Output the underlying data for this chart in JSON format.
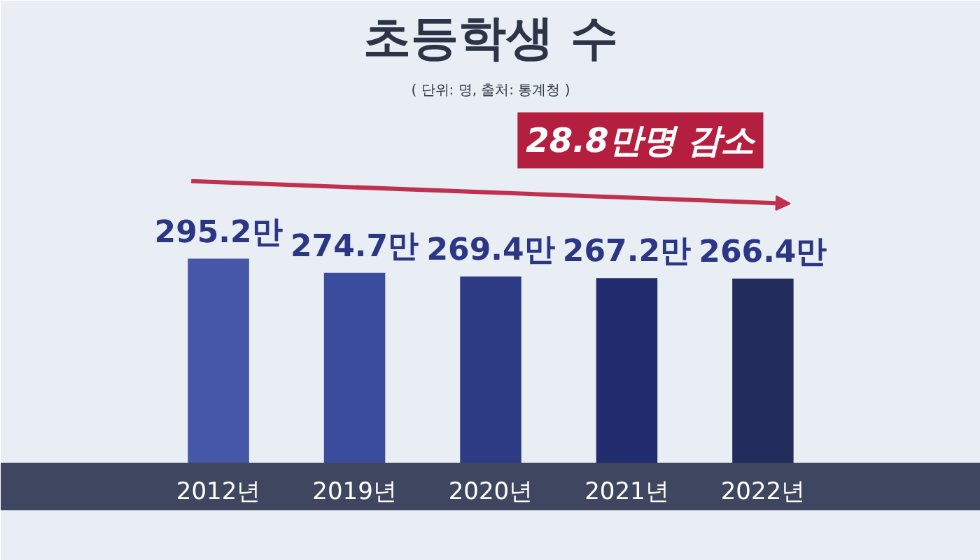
{
  "chart_data": {
    "type": "bar",
    "title": "초등학생 수",
    "subtitle": "( 단위: 명, 출처: 통계청 )",
    "categories": [
      "2012년",
      "2019년",
      "2020년",
      "2021년",
      "2022년"
    ],
    "values": [
      295.2,
      274.7,
      269.4,
      267.2,
      266.4
    ],
    "value_labels": [
      "295.2만",
      "274.7만",
      "269.4만",
      "267.2만",
      "266.4만"
    ],
    "colors": [
      "#4757a8",
      "#3b4c9c",
      "#2e3c85",
      "#212c6e",
      "#222d5c"
    ],
    "annotations": [
      "28.8만명 감소"
    ],
    "tick_labels": "x"
  }
}
